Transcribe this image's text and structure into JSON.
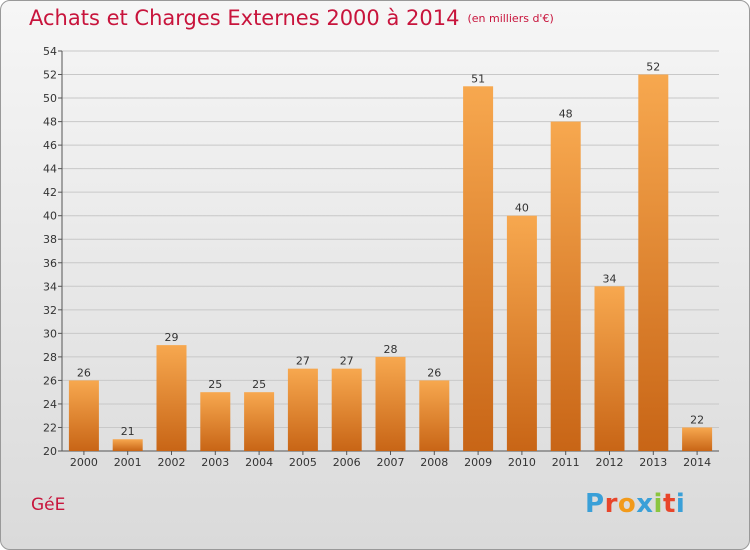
{
  "header": {
    "title": "Achats et Charges Externes 2000 à 2014",
    "subtitle": "(en milliers d'€)"
  },
  "footer": {
    "commune": "GéE",
    "logo_letters": [
      "P",
      "r",
      "o",
      "x",
      "i",
      "t",
      "i"
    ],
    "logo_colors": [
      "#3aa0d8",
      "#e8452a",
      "#f29a1a",
      "#3aa0d8",
      "#8bc53f",
      "#e8452a",
      "#3aa0d8"
    ]
  },
  "colors": {
    "title": "#c8143c",
    "bar_light": "#f7a84f",
    "bar_dark": "#c86516",
    "grid": "#c8c8c8"
  },
  "chart_data": {
    "type": "bar",
    "title": "Achats et Charges Externes 2000 à 2014",
    "subtitle": "(en milliers d'€)",
    "categories": [
      "2000",
      "2001",
      "2002",
      "2003",
      "2004",
      "2005",
      "2006",
      "2007",
      "2008",
      "2009",
      "2010",
      "2011",
      "2012",
      "2013",
      "2014"
    ],
    "values": [
      26,
      21,
      29,
      25,
      25,
      27,
      27,
      28,
      26,
      51,
      40,
      48,
      34,
      52,
      22
    ],
    "ylim": [
      20,
      54
    ],
    "yticks": [
      20,
      22,
      24,
      26,
      28,
      30,
      32,
      34,
      36,
      38,
      40,
      42,
      44,
      46,
      48,
      50,
      52,
      54
    ],
    "grid": true,
    "xlabel": "",
    "ylabel": ""
  }
}
